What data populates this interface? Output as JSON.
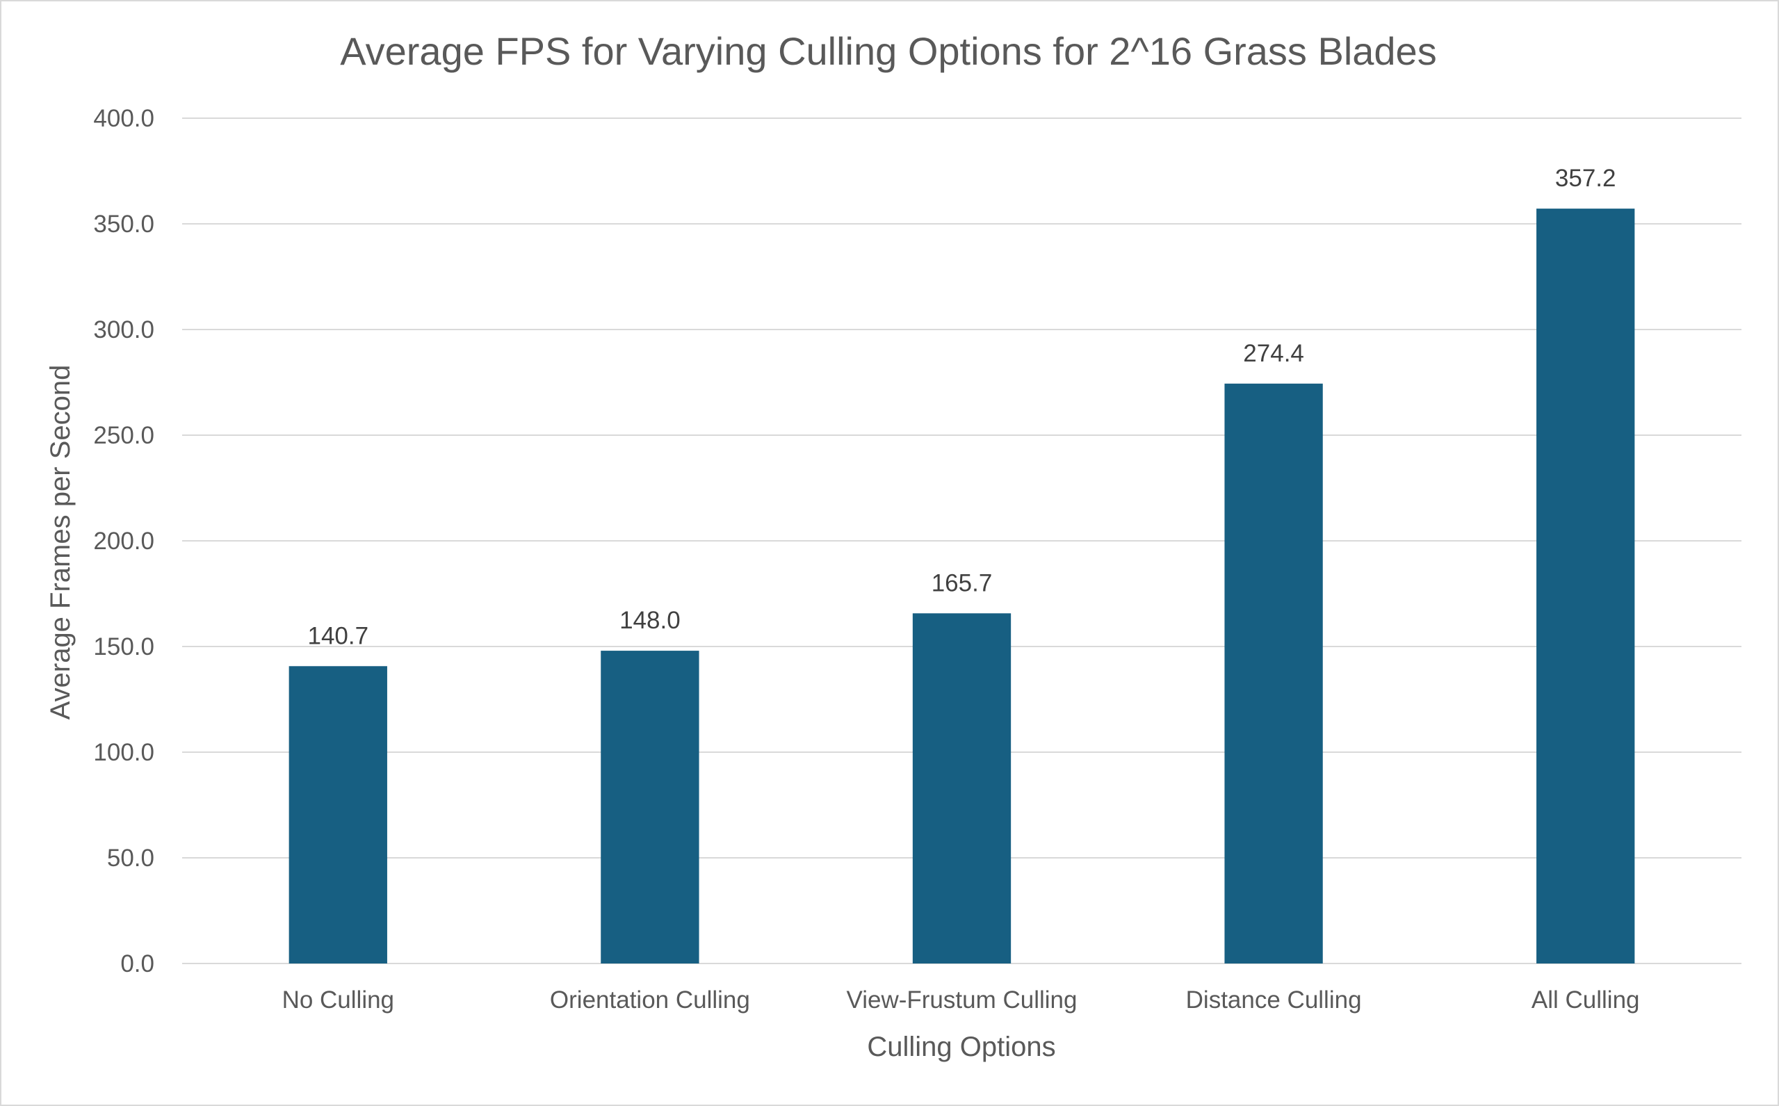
{
  "colors": {
    "bar": "#175f82",
    "grid": "#d9d9d9",
    "text": "#595959",
    "data_label": "#404040",
    "border": "#d9d9d9"
  },
  "chart_data": {
    "type": "bar",
    "title": "Average FPS for Varying Culling Options for 2^16 Grass Blades",
    "xlabel": "Culling Options",
    "ylabel": "Average Frames per Second",
    "categories": [
      "No Culling",
      "Orientation Culling",
      "View-Frustum Culling",
      "Distance Culling",
      "All Culling"
    ],
    "values": [
      140.7,
      148.0,
      165.7,
      274.4,
      357.2
    ],
    "data_labels": [
      "140.7",
      "148.0",
      "165.7",
      "274.4",
      "357.2"
    ],
    "ylim": [
      0,
      400
    ],
    "yticks": [
      0,
      50,
      100,
      150,
      200,
      250,
      300,
      350,
      400
    ],
    "ytick_labels": [
      "0.0",
      "50.0",
      "100.0",
      "150.0",
      "200.0",
      "250.0",
      "300.0",
      "350.0",
      "400.0"
    ],
    "grid": true,
    "legend": "none"
  }
}
